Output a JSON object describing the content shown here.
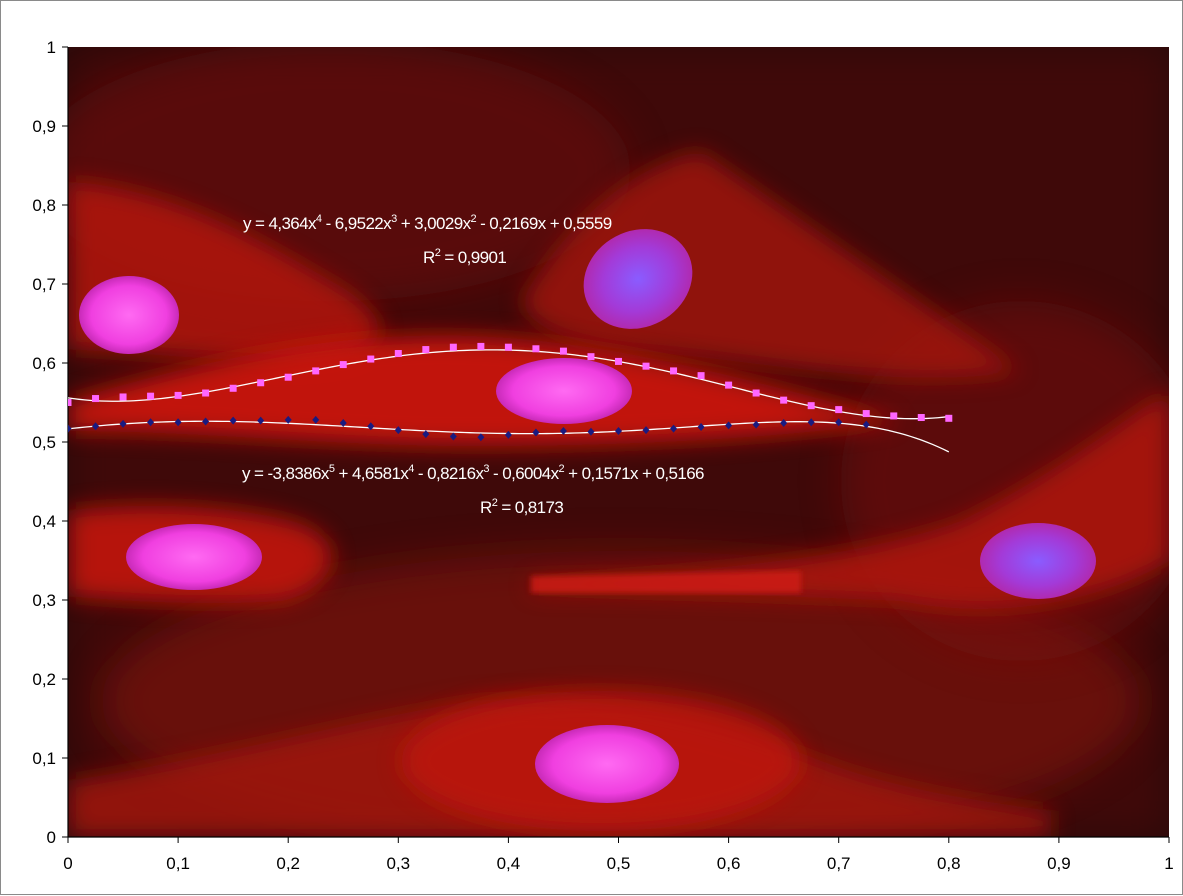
{
  "chart_data": {
    "type": "scatter",
    "title": "",
    "xlabel": "",
    "ylabel": "",
    "xlim": [
      0,
      1
    ],
    "ylim": [
      0,
      1
    ],
    "x_ticks": [
      "0",
      "0,1",
      "0,2",
      "0,3",
      "0,4",
      "0,5",
      "0,6",
      "0,7",
      "0,8",
      "0,9",
      "1"
    ],
    "y_ticks": [
      "0",
      "0,1",
      "0,2",
      "0,3",
      "0,4",
      "0,5",
      "0,6",
      "0,7",
      "0,8",
      "0,9",
      "1"
    ],
    "grid": false,
    "legend": "none",
    "background": "fluorescence micrograph of cells (red cytoplasm, magenta/blue nuclei)",
    "series": [
      {
        "marker": "square",
        "color": "#ff66ff",
        "x": [
          0.0,
          0.025,
          0.05,
          0.075,
          0.1,
          0.125,
          0.15,
          0.175,
          0.2,
          0.225,
          0.25,
          0.275,
          0.3,
          0.325,
          0.35,
          0.375,
          0.4,
          0.425,
          0.45,
          0.475,
          0.5,
          0.525,
          0.55,
          0.575,
          0.6,
          0.625,
          0.65,
          0.675,
          0.7,
          0.725,
          0.75,
          0.775,
          0.8
        ],
        "y": [
          0.55,
          0.555,
          0.557,
          0.558,
          0.559,
          0.562,
          0.568,
          0.575,
          0.582,
          0.59,
          0.598,
          0.605,
          0.612,
          0.617,
          0.62,
          0.621,
          0.62,
          0.618,
          0.615,
          0.608,
          0.602,
          0.596,
          0.59,
          0.584,
          0.572,
          0.562,
          0.553,
          0.546,
          0.541,
          0.536,
          0.533,
          0.531,
          0.53
        ],
        "trendline": {
          "kind": "polynomial",
          "coefficients": [
            0.5559,
            -0.2169,
            3.0029,
            -6.9522,
            4.364
          ],
          "x_range": [
            0,
            0.8
          ],
          "color": "#ffffff",
          "equation": "y = 4,364x⁴ - 6,9522x³ + 3,0029x² - 0,2169x + 0,5559",
          "r2": "R² = 0,9901"
        }
      },
      {
        "marker": "diamond",
        "color": "#1a1a80",
        "x": [
          0.0,
          0.025,
          0.05,
          0.075,
          0.1,
          0.125,
          0.15,
          0.175,
          0.2,
          0.225,
          0.25,
          0.275,
          0.3,
          0.325,
          0.35,
          0.375,
          0.4,
          0.425,
          0.45,
          0.475,
          0.5,
          0.525,
          0.55,
          0.575,
          0.6,
          0.625,
          0.65,
          0.675,
          0.7,
          0.725
        ],
        "y": [
          0.517,
          0.52,
          0.523,
          0.525,
          0.525,
          0.526,
          0.527,
          0.527,
          0.528,
          0.528,
          0.524,
          0.52,
          0.515,
          0.51,
          0.507,
          0.506,
          0.509,
          0.512,
          0.514,
          0.513,
          0.514,
          0.515,
          0.517,
          0.519,
          0.521,
          0.522,
          0.524,
          0.525,
          0.525,
          0.522
        ],
        "trendline": {
          "kind": "polynomial",
          "coefficients": [
            0.5166,
            0.1571,
            -0.6004,
            -0.8216,
            4.6581,
            -3.8386
          ],
          "x_range": [
            0,
            0.8
          ],
          "color": "#ffffff",
          "equation": "y = -3,8386x⁵ + 4,6581x⁴ - 0,8216x³ - 0,6004x² + 0,1571x + 0,5166",
          "r2": "R² = 0,8173"
        }
      }
    ]
  },
  "equations": {
    "eq1": {
      "pre": "y = 4,364x",
      "s1": "4",
      "t1": " - 6,9522x",
      "s2": "3",
      "t2": " + 3,0029x",
      "s3": "2",
      "t3": " - 0,2169x + 0,5559",
      "r_pre": "R",
      "r_sup": "2",
      "r_post": " = 0,9901"
    },
    "eq2": {
      "pre": "y = -3,8386x",
      "s1": "5",
      "t1": " + 4,6581x",
      "s2": "4",
      "t2": " - 0,8216x",
      "s3": "3",
      "t3": " - 0,6004x",
      "s4": "2",
      "t4": " + 0,1571x + 0,5166",
      "r_pre": "R",
      "r_sup": "2",
      "r_post": " = 0,8173"
    }
  }
}
